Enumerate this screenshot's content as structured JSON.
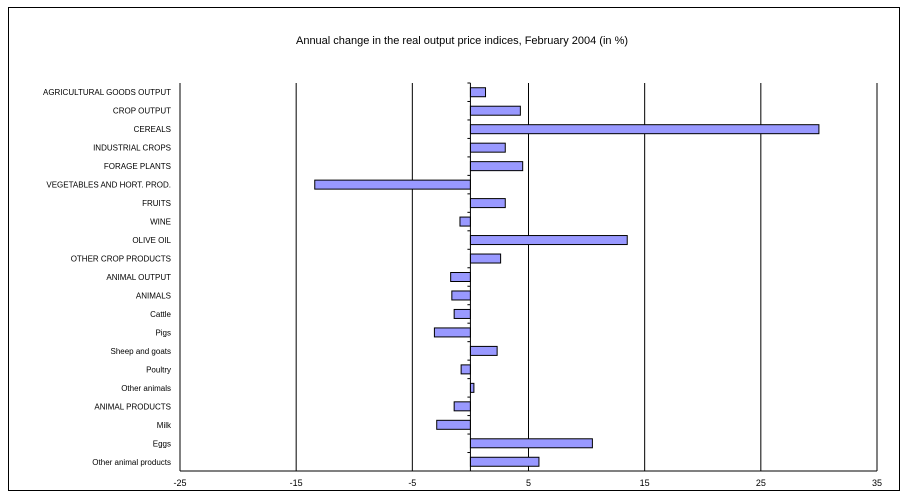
{
  "chart_data": {
    "type": "bar",
    "orientation": "horizontal",
    "title": "Annual change in the real output price indices, February 2004 (in %)",
    "xlabel": "",
    "ylabel": "",
    "xlim": [
      -25,
      35
    ],
    "xticks": [
      "-25",
      "-15",
      "-5",
      "5",
      "15",
      "25",
      "35"
    ],
    "grid": true,
    "legend": "none",
    "bar_color": "#9999ff",
    "categories": [
      "AGRICULTURAL GOODS OUTPUT",
      "CROP OUTPUT",
      "CEREALS",
      "INDUSTRIAL CROPS",
      "FORAGE PLANTS",
      "VEGETABLES AND HORT. PROD.",
      "FRUITS",
      "WINE",
      "OLIVE OIL",
      "OTHER CROP PRODUCTS",
      "ANIMAL OUTPUT",
      "ANIMALS",
      "Cattle",
      "Pigs",
      "Sheep and goats",
      "Poultry",
      "Other animals",
      "ANIMAL PRODUCTS",
      "Milk",
      "Eggs",
      "Other animal products"
    ],
    "values": [
      1.3,
      4.3,
      30.0,
      3.0,
      4.5,
      -13.4,
      3.0,
      -0.9,
      13.5,
      2.6,
      -1.7,
      -1.6,
      -1.4,
      -3.1,
      2.3,
      -0.8,
      0.3,
      -1.4,
      -2.9,
      10.5,
      5.9
    ]
  }
}
